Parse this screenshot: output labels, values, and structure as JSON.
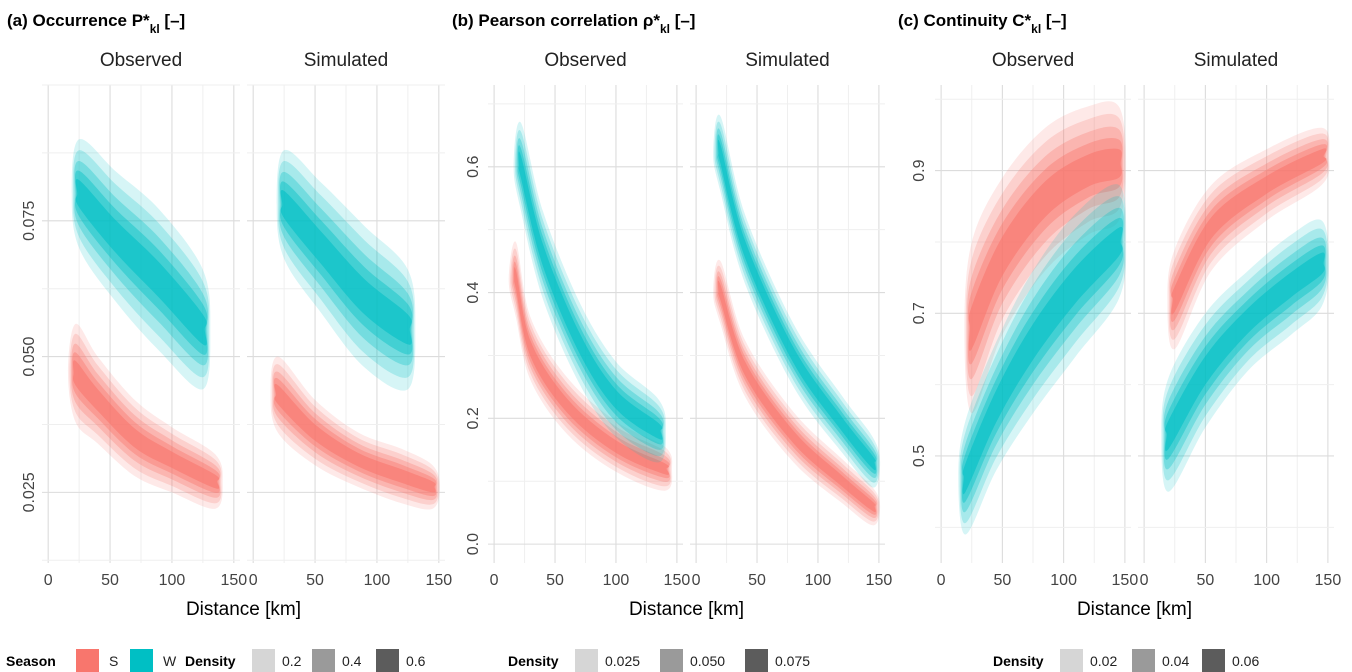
{
  "chart_data": [
    {
      "type": "density-contour",
      "title": "(a) Occurrence P*",
      "title_sub": "kl",
      "title_unit": " [–]",
      "facets": [
        "Observed",
        "Simulated"
      ],
      "xlabel": "Distance [km]",
      "ylabel": "",
      "xlim": [
        -5,
        155
      ],
      "ylim": [
        0.012,
        0.1
      ],
      "x_ticks": [
        0,
        50,
        100,
        150
      ],
      "y_ticks": [
        0.025,
        0.05,
        0.075
      ],
      "y_tick_labels": [
        "0.025",
        "0.050",
        "0.075"
      ],
      "density_legend": [
        "0.2",
        "0.4",
        "0.6"
      ],
      "series": [
        {
          "name": "S",
          "facet": "Observed",
          "centerline": [
            [
              22,
              0.047
            ],
            [
              40,
              0.042
            ],
            [
              70,
              0.035
            ],
            [
              100,
              0.031
            ],
            [
              135,
              0.027
            ]
          ],
          "halfwidth": [
            0.009,
            0.008,
            0.007,
            0.006,
            0.005
          ]
        },
        {
          "name": "W",
          "facet": "Observed",
          "centerline": [
            [
              25,
              0.08
            ],
            [
              55,
              0.072
            ],
            [
              90,
              0.064
            ],
            [
              125,
              0.055
            ]
          ],
          "halfwidth": [
            0.01,
            0.012,
            0.013,
            0.011
          ]
        },
        {
          "name": "S",
          "facet": "Simulated",
          "centerline": [
            [
              20,
              0.043
            ],
            [
              50,
              0.036
            ],
            [
              85,
              0.031
            ],
            [
              120,
              0.028
            ],
            [
              145,
              0.026
            ]
          ],
          "halfwidth": [
            0.007,
            0.006,
            0.005,
            0.005,
            0.004
          ]
        },
        {
          "name": "W",
          "facet": "Simulated",
          "centerline": [
            [
              25,
              0.078
            ],
            [
              55,
              0.07
            ],
            [
              90,
              0.061
            ],
            [
              125,
              0.055
            ]
          ],
          "halfwidth": [
            0.01,
            0.012,
            0.013,
            0.011
          ]
        }
      ]
    },
    {
      "type": "density-contour",
      "title": "(b) Pearson correlation ρ*",
      "title_sub": "kl",
      "title_unit": " [–]",
      "facets": [
        "Observed",
        "Simulated"
      ],
      "xlabel": "Distance [km]",
      "ylabel": "",
      "xlim": [
        -5,
        155
      ],
      "ylim": [
        -0.03,
        0.73
      ],
      "x_ticks": [
        0,
        50,
        100,
        150
      ],
      "y_ticks": [
        0.0,
        0.2,
        0.4,
        0.6
      ],
      "y_tick_labels": [
        "0.0",
        "0.2",
        "0.4",
        "0.6"
      ],
      "density_legend": [
        "0.025",
        "0.050",
        "0.075"
      ],
      "series": [
        {
          "name": "S",
          "facet": "Observed",
          "centerline": [
            [
              18,
              0.42
            ],
            [
              30,
              0.31
            ],
            [
              60,
              0.22
            ],
            [
              100,
              0.155
            ],
            [
              140,
              0.12
            ]
          ],
          "halfwidth": [
            0.06,
            0.05,
            0.045,
            0.04,
            0.035
          ]
        },
        {
          "name": "W",
          "facet": "Observed",
          "centerline": [
            [
              22,
              0.6
            ],
            [
              40,
              0.46
            ],
            [
              70,
              0.32
            ],
            [
              100,
              0.23
            ],
            [
              135,
              0.18
            ]
          ],
          "halfwidth": [
            0.07,
            0.07,
            0.065,
            0.06,
            0.05
          ]
        },
        {
          "name": "S",
          "facet": "Simulated",
          "centerline": [
            [
              20,
              0.4
            ],
            [
              40,
              0.28
            ],
            [
              80,
              0.17
            ],
            [
              120,
              0.1
            ],
            [
              145,
              0.06
            ]
          ],
          "halfwidth": [
            0.05,
            0.045,
            0.04,
            0.035,
            0.03
          ]
        },
        {
          "name": "W",
          "facet": "Simulated",
          "centerline": [
            [
              20,
              0.62
            ],
            [
              40,
              0.47
            ],
            [
              80,
              0.3
            ],
            [
              120,
              0.19
            ],
            [
              145,
              0.13
            ]
          ],
          "halfwidth": [
            0.06,
            0.055,
            0.05,
            0.045,
            0.04
          ]
        }
      ]
    },
    {
      "type": "density-contour",
      "title": "(c) Continuity C*",
      "title_sub": "kl",
      "title_unit": " [–]",
      "facets": [
        "Observed",
        "Simulated"
      ],
      "xlabel": "Distance [km]",
      "ylabel": "",
      "xlim": [
        -5,
        155
      ],
      "ylim": [
        0.35,
        1.02
      ],
      "x_ticks": [
        0,
        50,
        100,
        150
      ],
      "y_ticks": [
        0.5,
        0.7,
        0.9
      ],
      "y_tick_labels": [
        "0.5",
        "0.7",
        "0.9"
      ],
      "density_legend": [
        "0.02",
        "0.04",
        "0.06"
      ],
      "series": [
        {
          "name": "S",
          "facet": "Observed",
          "centerline": [
            [
              25,
              0.68
            ],
            [
              50,
              0.78
            ],
            [
              85,
              0.86
            ],
            [
              120,
              0.9
            ],
            [
              145,
              0.91
            ]
          ],
          "halfwidth": [
            0.12,
            0.11,
            0.1,
            0.09,
            0.08
          ]
        },
        {
          "name": "W",
          "facet": "Observed",
          "centerline": [
            [
              20,
              0.47
            ],
            [
              45,
              0.57
            ],
            [
              75,
              0.66
            ],
            [
              110,
              0.74
            ],
            [
              145,
              0.8
            ]
          ],
          "halfwidth": [
            0.08,
            0.09,
            0.1,
            0.1,
            0.08
          ]
        },
        {
          "name": "S",
          "facet": "Simulated",
          "centerline": [
            [
              25,
              0.72
            ],
            [
              55,
              0.82
            ],
            [
              100,
              0.88
            ],
            [
              145,
              0.92
            ]
          ],
          "halfwidth": [
            0.07,
            0.06,
            0.05,
            0.04
          ]
        },
        {
          "name": "W",
          "facet": "Simulated",
          "centerline": [
            [
              20,
              0.53
            ],
            [
              50,
              0.62
            ],
            [
              85,
              0.69
            ],
            [
              120,
              0.74
            ],
            [
              145,
              0.77
            ]
          ],
          "halfwidth": [
            0.08,
            0.08,
            0.07,
            0.07,
            0.06
          ]
        }
      ]
    }
  ],
  "legend": {
    "season_title": "Season",
    "season_items": [
      {
        "label": "S",
        "color": "#F8766D"
      },
      {
        "label": "W",
        "color": "#00BFC4"
      }
    ],
    "density_title": "Density",
    "density_shades": [
      "#d6d6d6",
      "#9a9a9a",
      "#5c5c5c"
    ]
  },
  "colors": {
    "S": "#F8766D",
    "W": "#00BFC4",
    "grid": "#dcdcdc",
    "grid_minor": "#efefef"
  }
}
